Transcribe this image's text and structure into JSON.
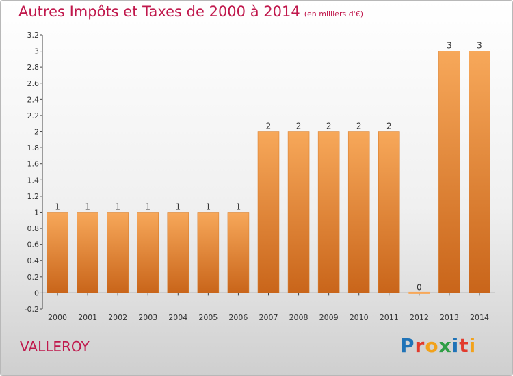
{
  "header": {
    "title": "Autres Impôts et Taxes de 2000 à 2014",
    "unit": "(en milliers d'€)"
  },
  "footer": {
    "commune": "VALLEROY",
    "logo_letters": [
      {
        "ch": "P",
        "color": "#1f73b7"
      },
      {
        "ch": "r",
        "color": "#e23a2c"
      },
      {
        "ch": "o",
        "color": "#f2a21b"
      },
      {
        "ch": "x",
        "color": "#2f9e45"
      },
      {
        "ch": "i",
        "color": "#1f73b7"
      },
      {
        "ch": "t",
        "color": "#e23a2c"
      },
      {
        "ch": "i",
        "color": "#f2a21b"
      }
    ]
  },
  "chart_data": {
    "type": "bar",
    "title": "Autres Impôts et Taxes de 2000 à 2014",
    "subtitle": "(en milliers d'€)",
    "categories": [
      "2000",
      "2001",
      "2002",
      "2003",
      "2004",
      "2005",
      "2006",
      "2007",
      "2008",
      "2009",
      "2010",
      "2011",
      "2012",
      "2013",
      "2014"
    ],
    "values": [
      1,
      1,
      1,
      1,
      1,
      1,
      1,
      2,
      2,
      2,
      2,
      2,
      0,
      3,
      3
    ],
    "data_labels": [
      "1",
      "1",
      "1",
      "1",
      "1",
      "1",
      "1",
      "2",
      "2",
      "2",
      "2",
      "2",
      "0",
      "3",
      "3"
    ],
    "y_ticks": [
      -0.2,
      0,
      0.2,
      0.4,
      0.6,
      0.8,
      1,
      1.2,
      1.4,
      1.6,
      1.8,
      2,
      2.2,
      2.4,
      2.6,
      2.8,
      3,
      3.2
    ],
    "y_tick_labels": [
      "-0.2",
      "0",
      "0.2",
      "0.4",
      "0.6",
      "0.8",
      "1",
      "1.2",
      "1.4",
      "1.6",
      "1.8",
      "2",
      "2.2",
      "2.4",
      "2.6",
      "2.8",
      "3",
      "3.2"
    ],
    "ylim": [
      -0.2,
      3.2
    ],
    "xlabel": "",
    "ylabel": "",
    "grid": false,
    "bar_color": "#f08a2b",
    "bar_color_light": "#f7a85a",
    "bar_color_dark": "#c9651a",
    "text_color": "#c0184c"
  }
}
